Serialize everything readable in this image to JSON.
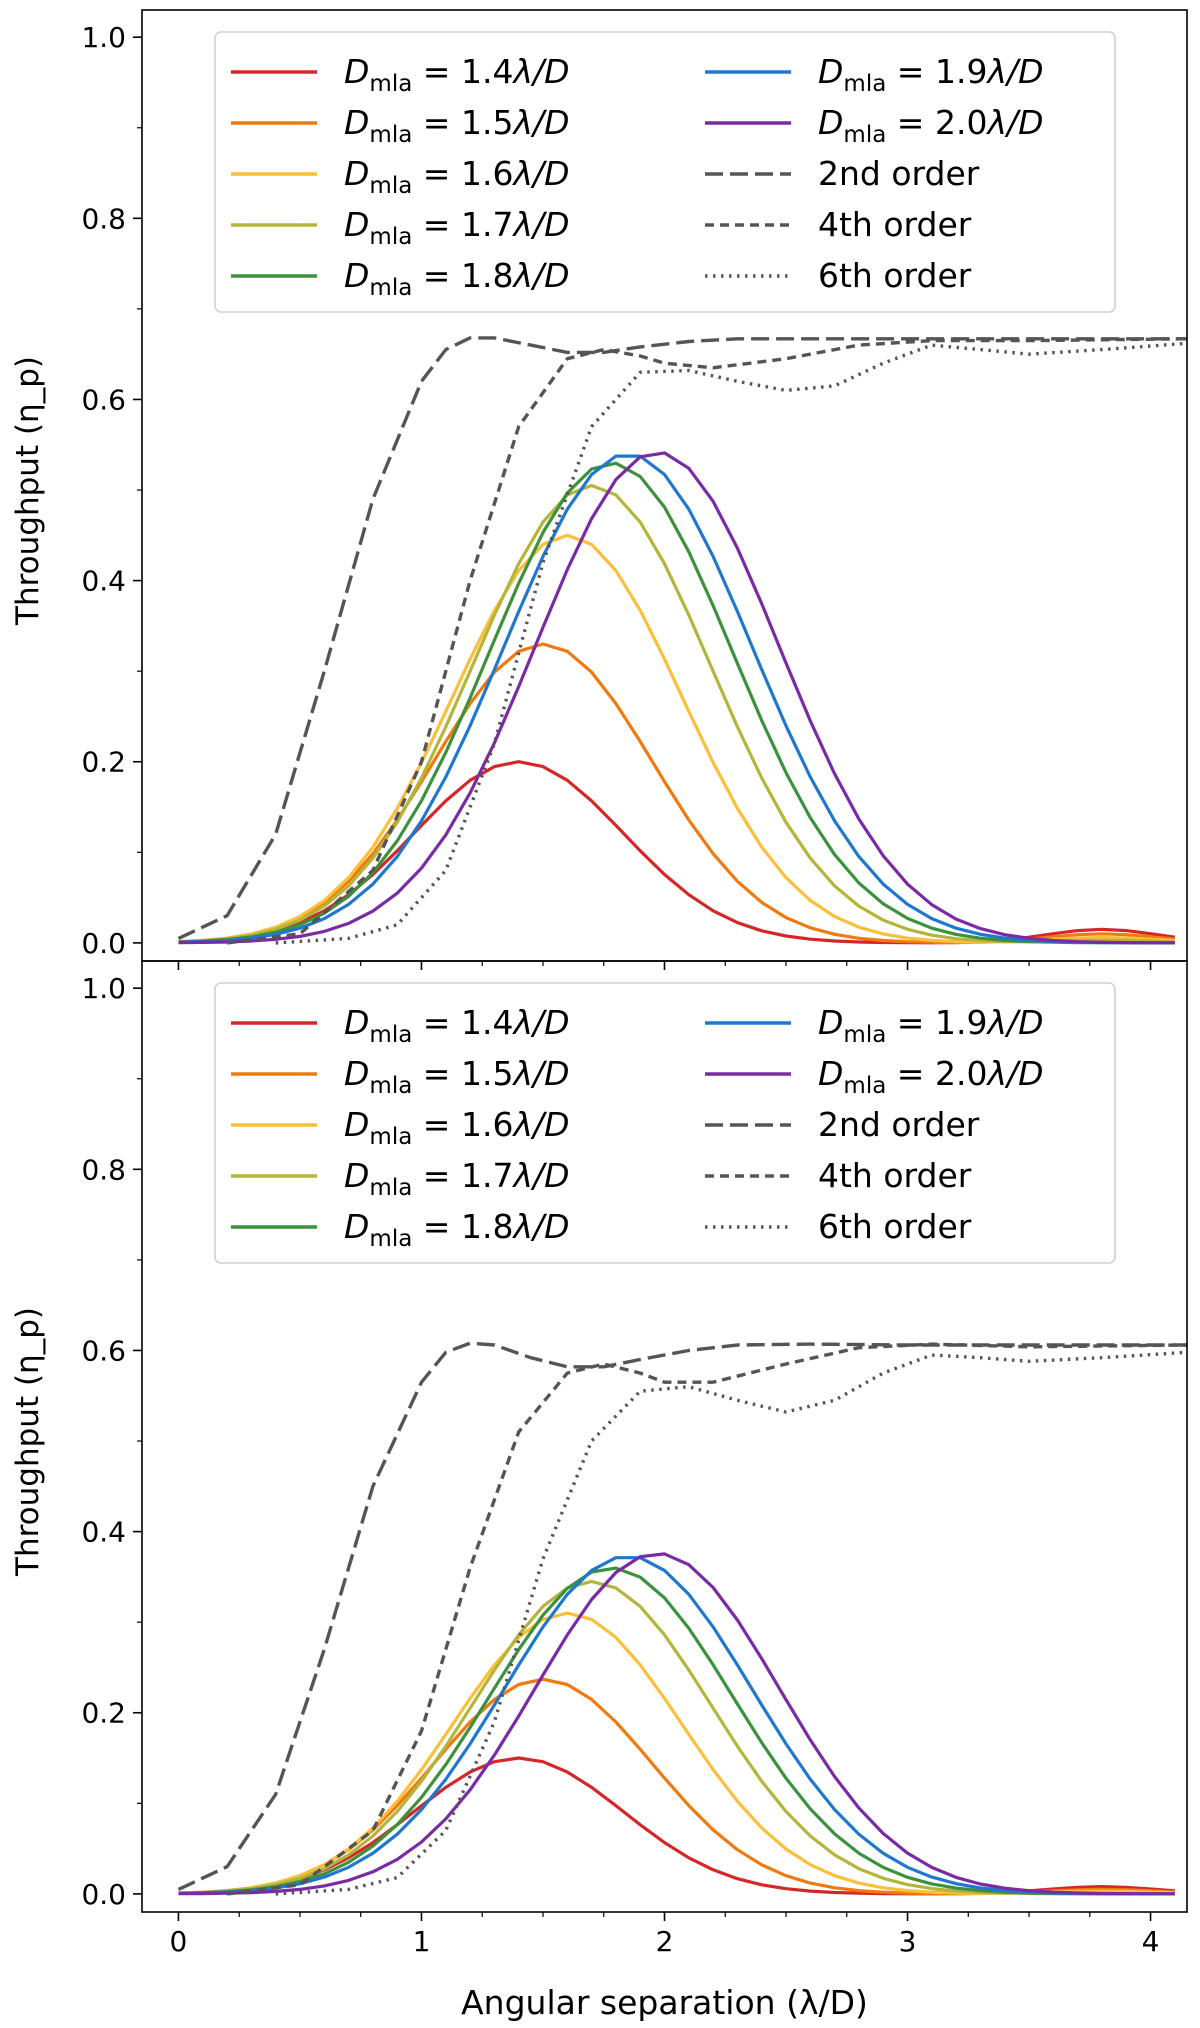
{
  "chart_data": [
    {
      "type": "line",
      "panel": "top",
      "xlabel": "",
      "ylabel": "Throughput (η_p)",
      "xlim": [
        -0.15,
        4.15
      ],
      "ylim": [
        -0.02,
        1.03
      ],
      "xticks": [
        0,
        1,
        2,
        3,
        4
      ],
      "xtick_labels": [
        "0",
        "1",
        "2",
        "3",
        "4"
      ],
      "show_xtick_labels": false,
      "yticks": [
        0.0,
        0.2,
        0.4,
        0.6,
        0.8,
        1.0
      ],
      "ytick_labels": [
        "0.0",
        "0.2",
        "0.4",
        "0.6",
        "0.8",
        "1.0"
      ],
      "grid": false,
      "legend_position": "top-center",
      "series": [
        {
          "name": "D_mla = 1.4λ/D",
          "sub": "mla",
          "value_text": "1.4",
          "color": "#d62728",
          "style": "solid",
          "peak_x": 1.4,
          "peak_y": 0.2,
          "width": 0.43,
          "tail": 0.015
        },
        {
          "name": "D_mla = 1.5λ/D",
          "sub": "mla",
          "value_text": "1.5",
          "color": "#f17a0f",
          "style": "solid",
          "peak_x": 1.5,
          "peak_y": 0.33,
          "width": 0.45,
          "tail": 0.01
        },
        {
          "name": "D_mla = 1.6λ/D",
          "sub": "mla",
          "value_text": "1.6",
          "color": "#fbbf3a",
          "style": "solid",
          "peak_x": 1.6,
          "peak_y": 0.45,
          "width": 0.47,
          "tail": 0.006
        },
        {
          "name": "D_mla = 1.7λ/D",
          "sub": "mla",
          "value_text": "1.7",
          "color": "#b5b53a",
          "style": "solid",
          "peak_x": 1.7,
          "peak_y": 0.505,
          "width": 0.49,
          "tail": 0.003
        },
        {
          "name": "D_mla = 1.8λ/D",
          "sub": "mla",
          "value_text": "1.8",
          "color": "#3c923c",
          "style": "solid",
          "peak_x": 1.78,
          "peak_y": 0.53,
          "width": 0.5,
          "tail": 0.0
        },
        {
          "name": "D_mla = 1.9λ/D",
          "sub": "mla",
          "value_text": "1.9",
          "color": "#1f77d0",
          "style": "solid",
          "peak_x": 1.85,
          "peak_y": 0.54,
          "width": 0.51,
          "tail": 0.0
        },
        {
          "name": "D_mla = 2.0λ/D",
          "sub": "mla",
          "value_text": "2.0",
          "color": "#7b2aa6",
          "style": "solid",
          "peak_x": 1.97,
          "peak_y": 0.542,
          "width": 0.5,
          "tail": 0.0
        },
        {
          "name": "2nd order",
          "color": "#555555",
          "style": "long-dash",
          "plateau": 0.667,
          "x": [
            0.0,
            0.2,
            0.4,
            0.6,
            0.8,
            1.0,
            1.1,
            1.2,
            1.3,
            1.45,
            1.6,
            1.75,
            1.9,
            2.1,
            2.3,
            2.6,
            3.0,
            3.5,
            4.15
          ],
          "y": [
            0.005,
            0.03,
            0.12,
            0.3,
            0.49,
            0.62,
            0.655,
            0.668,
            0.668,
            0.66,
            0.652,
            0.652,
            0.658,
            0.664,
            0.667,
            0.667,
            0.667,
            0.667,
            0.667
          ]
        },
        {
          "name": "4th order",
          "color": "#555555",
          "style": "short-dash",
          "plateau": 0.667,
          "x": [
            0.2,
            0.5,
            0.8,
            1.0,
            1.2,
            1.4,
            1.6,
            1.75,
            1.9,
            2.0,
            2.2,
            2.5,
            2.8,
            3.1,
            3.5,
            4.15
          ],
          "y": [
            0.0,
            0.01,
            0.08,
            0.2,
            0.4,
            0.57,
            0.645,
            0.655,
            0.648,
            0.64,
            0.635,
            0.645,
            0.66,
            0.665,
            0.665,
            0.667
          ]
        },
        {
          "name": "6th order",
          "color": "#555555",
          "style": "dotted",
          "plateau": 0.667,
          "x": [
            0.4,
            0.7,
            0.9,
            1.1,
            1.3,
            1.5,
            1.7,
            1.9,
            2.1,
            2.3,
            2.5,
            2.7,
            2.9,
            3.1,
            3.3,
            3.5,
            3.8,
            4.15
          ],
          "y": [
            0.0,
            0.005,
            0.02,
            0.08,
            0.22,
            0.42,
            0.57,
            0.63,
            0.632,
            0.62,
            0.61,
            0.615,
            0.64,
            0.66,
            0.655,
            0.65,
            0.655,
            0.662
          ]
        }
      ]
    },
    {
      "type": "line",
      "panel": "bottom",
      "xlabel": "Angular separation (λ/D)",
      "ylabel": "Throughput (η_p)",
      "xlim": [
        -0.15,
        4.15
      ],
      "ylim": [
        -0.02,
        1.03
      ],
      "xticks": [
        0,
        1,
        2,
        3,
        4
      ],
      "xtick_labels": [
        "0",
        "1",
        "2",
        "3",
        "4"
      ],
      "show_xtick_labels": true,
      "yticks": [
        0.0,
        0.2,
        0.4,
        0.6,
        0.8,
        1.0
      ],
      "ytick_labels": [
        "0.0",
        "0.2",
        "0.4",
        "0.6",
        "0.8",
        "1.0"
      ],
      "grid": false,
      "legend_position": "top-center",
      "series": [
        {
          "name": "D_mla = 1.4λ/D",
          "sub": "mla",
          "value_text": "1.4",
          "color": "#d62728",
          "style": "solid",
          "peak_x": 1.4,
          "peak_y": 0.15,
          "width": 0.43,
          "tail": 0.008
        },
        {
          "name": "D_mla = 1.5λ/D",
          "sub": "mla",
          "value_text": "1.5",
          "color": "#f17a0f",
          "style": "solid",
          "peak_x": 1.5,
          "peak_y": 0.237,
          "width": 0.45,
          "tail": 0.005
        },
        {
          "name": "D_mla = 1.6λ/D",
          "sub": "mla",
          "value_text": "1.6",
          "color": "#fbbf3a",
          "style": "solid",
          "peak_x": 1.6,
          "peak_y": 0.31,
          "width": 0.47,
          "tail": 0.003
        },
        {
          "name": "D_mla = 1.7λ/D",
          "sub": "mla",
          "value_text": "1.7",
          "color": "#b5b53a",
          "style": "solid",
          "peak_x": 1.7,
          "peak_y": 0.345,
          "width": 0.49,
          "tail": 0.0
        },
        {
          "name": "D_mla = 1.8λ/D",
          "sub": "mla",
          "value_text": "1.8",
          "color": "#3c923c",
          "style": "solid",
          "peak_x": 1.78,
          "peak_y": 0.36,
          "width": 0.5,
          "tail": 0.0
        },
        {
          "name": "D_mla = 1.9λ/D",
          "sub": "mla",
          "value_text": "1.9",
          "color": "#1f77d0",
          "style": "solid",
          "peak_x": 1.85,
          "peak_y": 0.373,
          "width": 0.51,
          "tail": 0.0
        },
        {
          "name": "D_mla = 2.0λ/D",
          "sub": "mla",
          "value_text": "2.0",
          "color": "#7b2aa6",
          "style": "solid",
          "peak_x": 1.97,
          "peak_y": 0.376,
          "width": 0.5,
          "tail": 0.0
        },
        {
          "name": "2nd order",
          "color": "#555555",
          "style": "long-dash",
          "plateau": 0.607,
          "x": [
            0.0,
            0.2,
            0.4,
            0.6,
            0.8,
            1.0,
            1.1,
            1.2,
            1.3,
            1.45,
            1.6,
            1.75,
            1.9,
            2.1,
            2.3,
            2.6,
            3.0,
            3.5,
            4.15
          ],
          "y": [
            0.005,
            0.03,
            0.11,
            0.27,
            0.45,
            0.565,
            0.598,
            0.608,
            0.606,
            0.592,
            0.582,
            0.582,
            0.59,
            0.6,
            0.606,
            0.607,
            0.606,
            0.606,
            0.606
          ]
        },
        {
          "name": "4th order",
          "color": "#555555",
          "style": "short-dash",
          "plateau": 0.607,
          "x": [
            0.2,
            0.5,
            0.8,
            1.0,
            1.2,
            1.4,
            1.6,
            1.75,
            1.9,
            2.0,
            2.2,
            2.5,
            2.8,
            3.1,
            3.5,
            4.15
          ],
          "y": [
            0.0,
            0.01,
            0.07,
            0.18,
            0.36,
            0.51,
            0.575,
            0.585,
            0.575,
            0.565,
            0.565,
            0.585,
            0.603,
            0.607,
            0.604,
            0.606
          ]
        },
        {
          "name": "6th order",
          "color": "#555555",
          "style": "dotted",
          "plateau": 0.607,
          "x": [
            0.4,
            0.7,
            0.9,
            1.1,
            1.3,
            1.5,
            1.7,
            1.9,
            2.1,
            2.3,
            2.5,
            2.7,
            2.9,
            3.1,
            3.3,
            3.5,
            3.8,
            4.15
          ],
          "y": [
            0.0,
            0.005,
            0.018,
            0.07,
            0.19,
            0.37,
            0.5,
            0.555,
            0.56,
            0.545,
            0.532,
            0.545,
            0.575,
            0.595,
            0.592,
            0.588,
            0.592,
            0.598
          ]
        }
      ]
    }
  ]
}
